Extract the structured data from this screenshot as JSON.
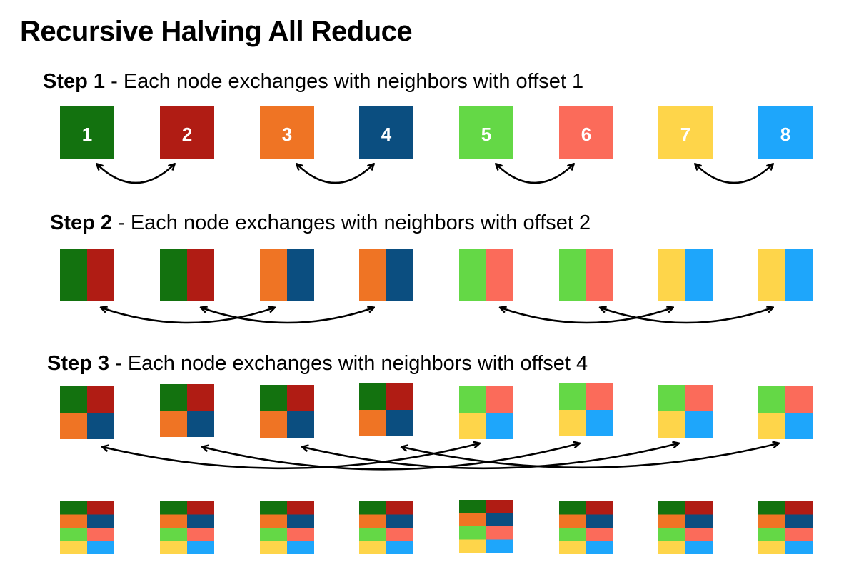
{
  "title": "Recursive Halving All Reduce",
  "colors": {
    "n1": "#13720f",
    "n2": "#b01c14",
    "n3": "#ef7424",
    "n4": "#0b4e80",
    "n5": "#64d846",
    "n6": "#fb6b5a",
    "n7": "#fed54a",
    "n8": "#1ea6fb"
  },
  "steps": [
    {
      "label": "Step 1",
      "description": "Each node exchanges with neighbors with offset 1",
      "offset": 1,
      "pairs": [
        [
          1,
          2
        ],
        [
          3,
          4
        ],
        [
          5,
          6
        ],
        [
          7,
          8
        ]
      ]
    },
    {
      "label": "Step 2",
      "description": "Each node exchanges with neighbors with offset 2",
      "offset": 2,
      "pairs": [
        [
          1,
          3
        ],
        [
          2,
          4
        ],
        [
          5,
          7
        ],
        [
          6,
          8
        ]
      ]
    },
    {
      "label": "Step 3",
      "description": "Each node exchanges with neighbors with offset 4",
      "offset": 4,
      "pairs": [
        [
          1,
          5
        ],
        [
          2,
          6
        ],
        [
          3,
          7
        ],
        [
          4,
          8
        ]
      ]
    }
  ],
  "nodes": [
    "1",
    "2",
    "3",
    "4",
    "5",
    "6",
    "7",
    "8"
  ]
}
